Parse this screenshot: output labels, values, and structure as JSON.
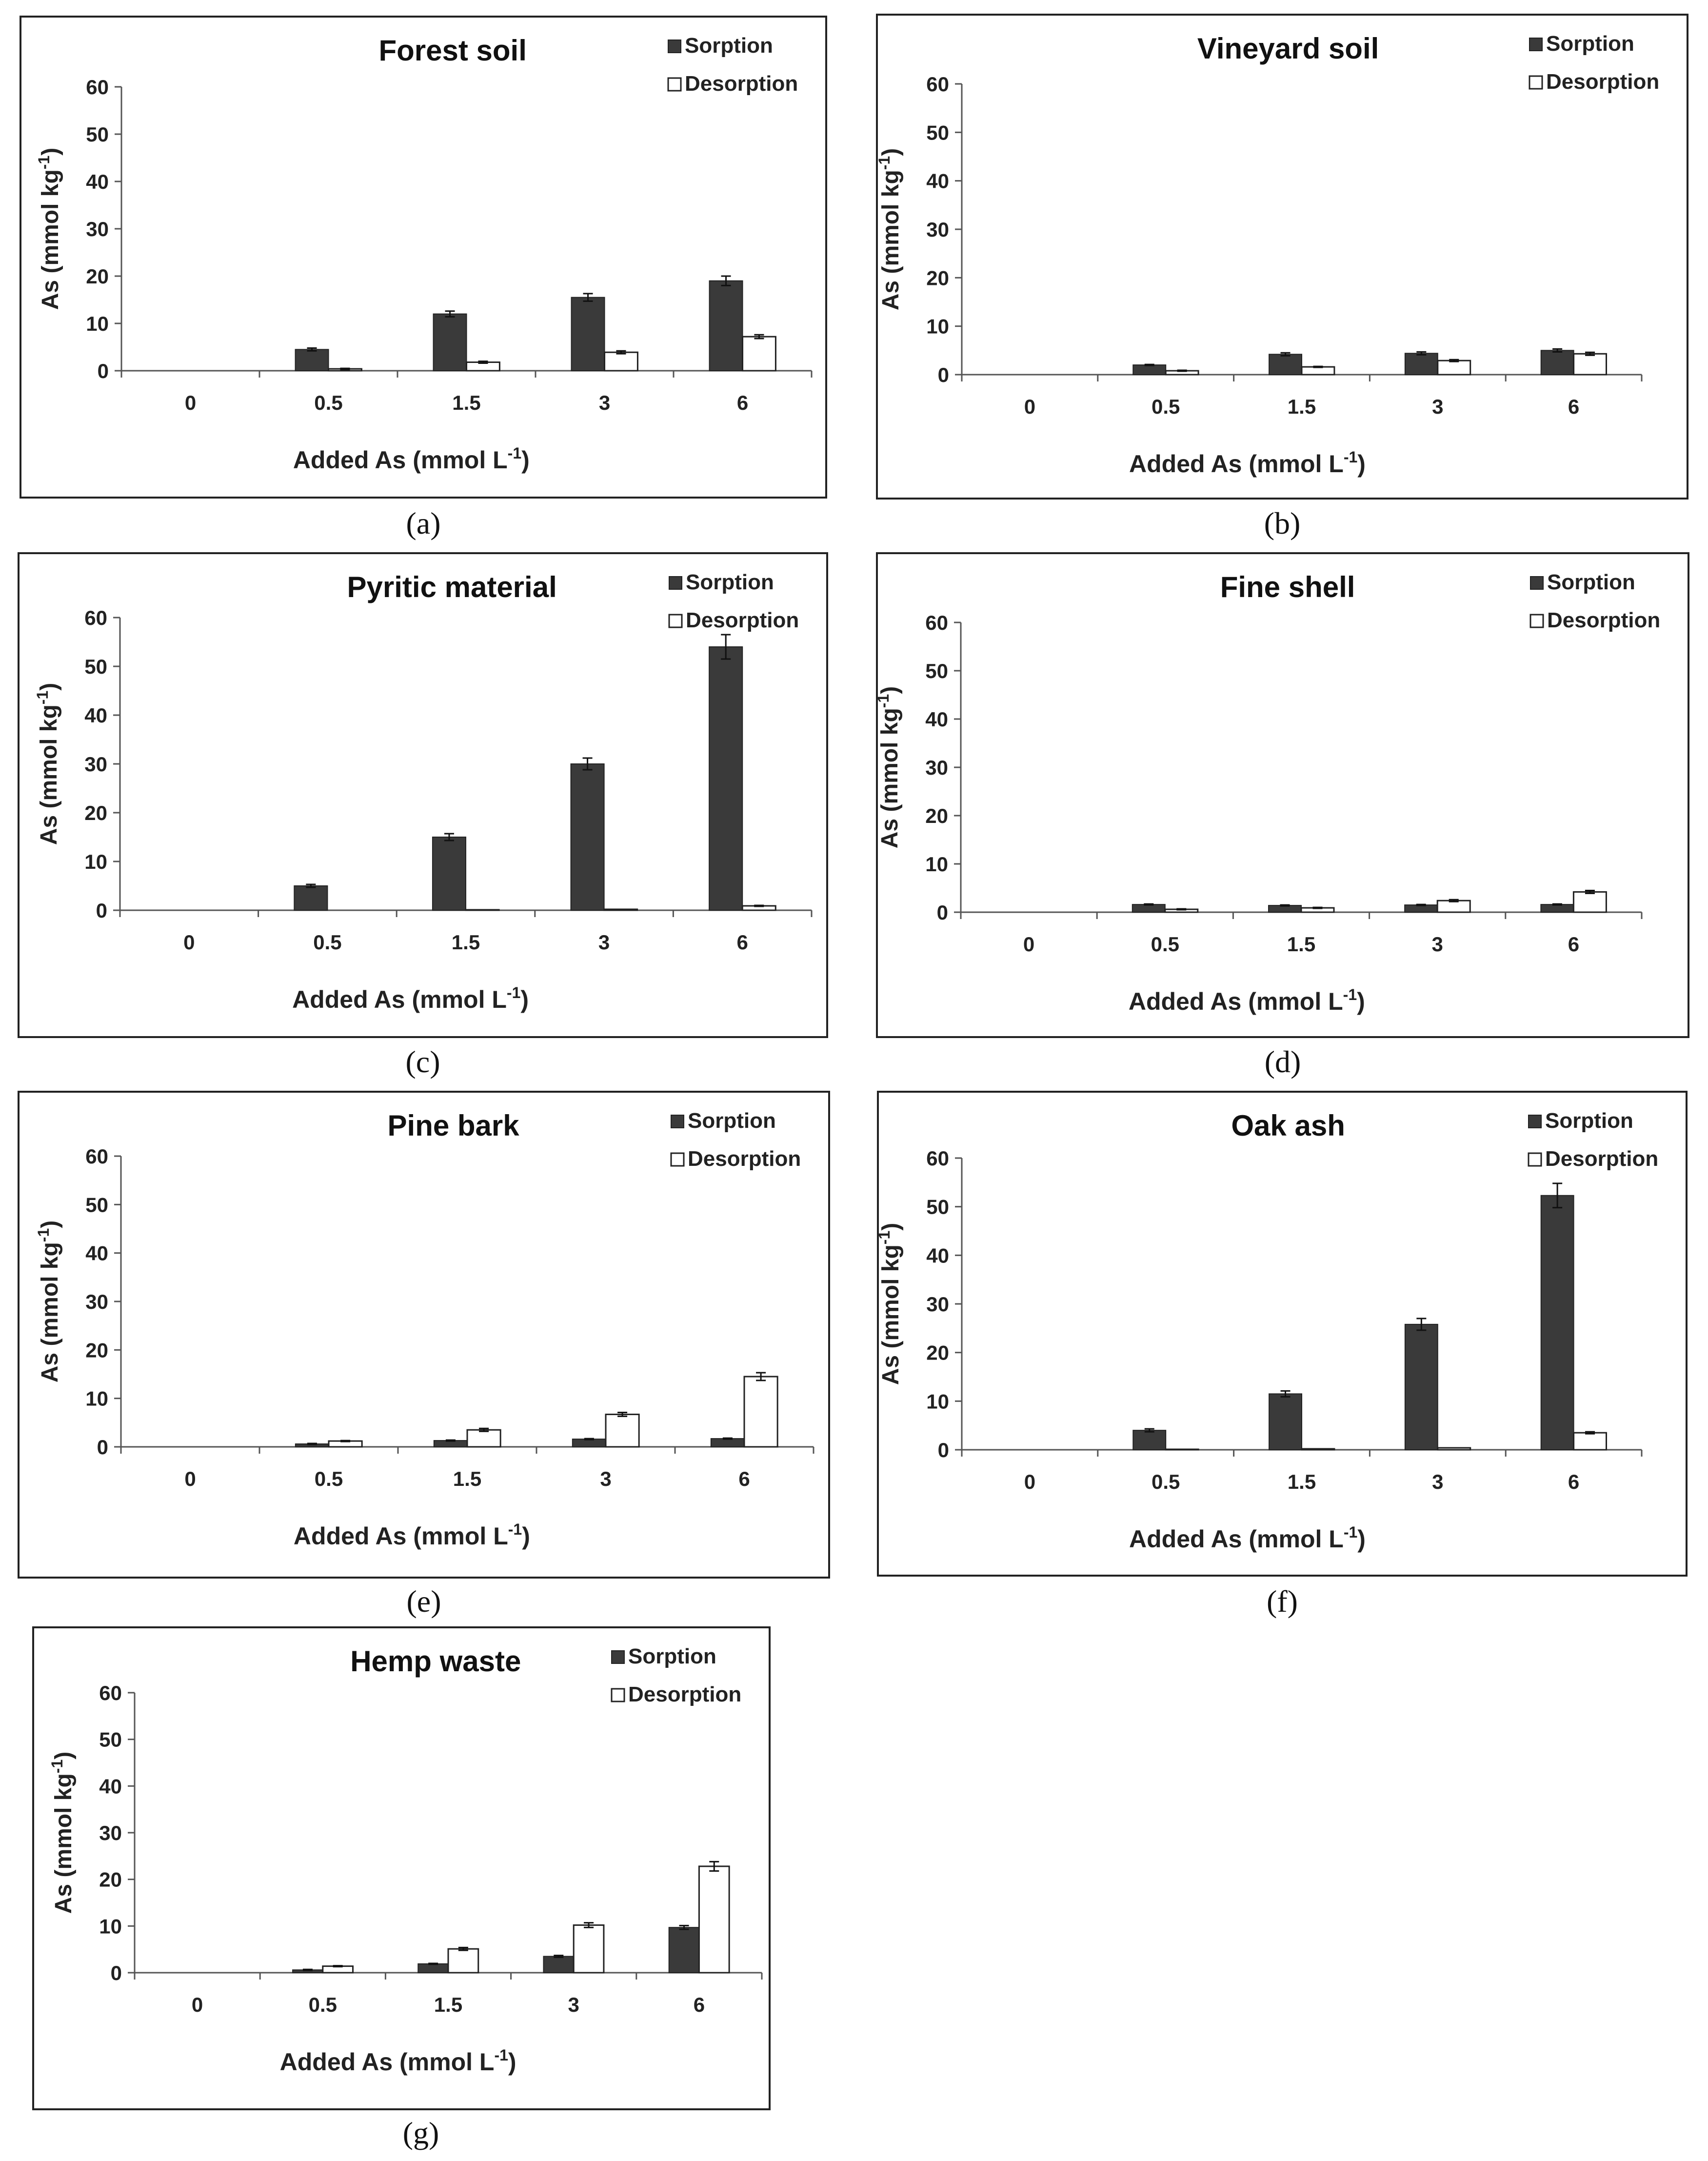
{
  "figure": {
    "legend_sorption": "Sorption",
    "legend_desorption": "Desorption",
    "ylabel": "As (mmol kg",
    "ylabel_sup": "-1",
    "ylabel_end": ")",
    "xlabel": "Added As (mmol L",
    "xlabel_sup": "-1",
    "xlabel_end": ")",
    "colors": {
      "sorption": "#3a3a3a",
      "desorption": "#ffffff",
      "axis": "#555555",
      "border": "#222222"
    }
  },
  "chart_data": [
    {
      "type": "bar",
      "panel": "(a)",
      "title": "Forest soil",
      "categories": [
        "0",
        "0.5",
        "1.5",
        "3",
        "6"
      ],
      "yticks": [
        0,
        10,
        20,
        30,
        40,
        50,
        60
      ],
      "ylim": [
        0,
        60
      ],
      "series": [
        {
          "name": "Sorption",
          "values": [
            0,
            4.5,
            12.0,
            15.5,
            19.0
          ],
          "errors": [
            0,
            0.3,
            0.6,
            0.8,
            1.0
          ]
        },
        {
          "name": "Desorption",
          "values": [
            0,
            0.4,
            1.8,
            3.9,
            7.2
          ],
          "errors": [
            0,
            0.1,
            0.2,
            0.3,
            0.4
          ]
        }
      ]
    },
    {
      "type": "bar",
      "panel": "(b)",
      "title": "Vineyard soil",
      "categories": [
        "0",
        "0.5",
        "1.5",
        "3",
        "6"
      ],
      "yticks": [
        0,
        10,
        20,
        30,
        40,
        50,
        60
      ],
      "ylim": [
        0,
        60
      ],
      "series": [
        {
          "name": "Sorption",
          "values": [
            0,
            2.0,
            4.2,
            4.4,
            5.0
          ],
          "errors": [
            0,
            0.1,
            0.3,
            0.3,
            0.3
          ]
        },
        {
          "name": "Desorption",
          "values": [
            0,
            0.8,
            1.6,
            2.9,
            4.3
          ],
          "errors": [
            0,
            0.1,
            0.1,
            0.2,
            0.3
          ]
        }
      ]
    },
    {
      "type": "bar",
      "panel": "(c)",
      "title": "Pyritic material",
      "categories": [
        "0",
        "0.5",
        "1.5",
        "3",
        "6"
      ],
      "yticks": [
        0,
        10,
        20,
        30,
        40,
        50,
        60
      ],
      "ylim": [
        0,
        60
      ],
      "series": [
        {
          "name": "Sorption",
          "values": [
            0,
            5.0,
            15.0,
            30.0,
            54.0
          ],
          "errors": [
            0,
            0.3,
            0.7,
            1.2,
            2.5
          ]
        },
        {
          "name": "Desorption",
          "values": [
            0,
            0.0,
            0.1,
            0.2,
            0.9
          ],
          "errors": [
            0,
            0,
            0,
            0,
            0.1
          ]
        }
      ]
    },
    {
      "type": "bar",
      "panel": "(d)",
      "title": "Fine shell",
      "categories": [
        "0",
        "0.5",
        "1.5",
        "3",
        "6"
      ],
      "yticks": [
        0,
        10,
        20,
        30,
        40,
        50,
        60
      ],
      "ylim": [
        0,
        60
      ],
      "series": [
        {
          "name": "Sorption",
          "values": [
            0,
            1.6,
            1.4,
            1.5,
            1.6
          ],
          "errors": [
            0,
            0.1,
            0.1,
            0.1,
            0.1
          ]
        },
        {
          "name": "Desorption",
          "values": [
            0,
            0.6,
            0.9,
            2.4,
            4.2
          ],
          "errors": [
            0,
            0.1,
            0.1,
            0.2,
            0.3
          ]
        }
      ]
    },
    {
      "type": "bar",
      "panel": "(e)",
      "title": "Pine bark",
      "categories": [
        "0",
        "0.5",
        "1.5",
        "3",
        "6"
      ],
      "yticks": [
        0,
        10,
        20,
        30,
        40,
        50,
        60
      ],
      "ylim": [
        0,
        60
      ],
      "series": [
        {
          "name": "Sorption",
          "values": [
            0,
            0.6,
            1.3,
            1.6,
            1.7
          ],
          "errors": [
            0,
            0.1,
            0.1,
            0.1,
            0.1
          ]
        },
        {
          "name": "Desorption",
          "values": [
            0,
            1.2,
            3.5,
            6.7,
            14.5
          ],
          "errors": [
            0,
            0.1,
            0.3,
            0.4,
            0.8
          ]
        }
      ]
    },
    {
      "type": "bar",
      "panel": "(f)",
      "title": "Oak ash",
      "categories": [
        "0",
        "0.5",
        "1.5",
        "3",
        "6"
      ],
      "yticks": [
        0,
        10,
        20,
        30,
        40,
        50,
        60
      ],
      "ylim": [
        0,
        60
      ],
      "series": [
        {
          "name": "Sorption",
          "values": [
            0,
            4.0,
            11.5,
            25.8,
            52.3
          ],
          "errors": [
            0,
            0.3,
            0.6,
            1.2,
            2.5
          ]
        },
        {
          "name": "Desorption",
          "values": [
            0,
            0.1,
            0.2,
            0.4,
            3.5
          ],
          "errors": [
            0,
            0,
            0,
            0,
            0.2
          ]
        }
      ]
    },
    {
      "type": "bar",
      "panel": "(g)",
      "title": "Hemp waste",
      "categories": [
        "0",
        "0.5",
        "1.5",
        "3",
        "6"
      ],
      "yticks": [
        0,
        10,
        20,
        30,
        40,
        50,
        60
      ],
      "ylim": [
        0,
        60
      ],
      "series": [
        {
          "name": "Sorption",
          "values": [
            0,
            0.6,
            1.9,
            3.5,
            9.7
          ],
          "errors": [
            0,
            0.1,
            0.1,
            0.2,
            0.4
          ]
        },
        {
          "name": "Desorption",
          "values": [
            0,
            1.4,
            5.1,
            10.2,
            22.8
          ],
          "errors": [
            0,
            0.1,
            0.3,
            0.5,
            1.0
          ]
        }
      ]
    }
  ]
}
